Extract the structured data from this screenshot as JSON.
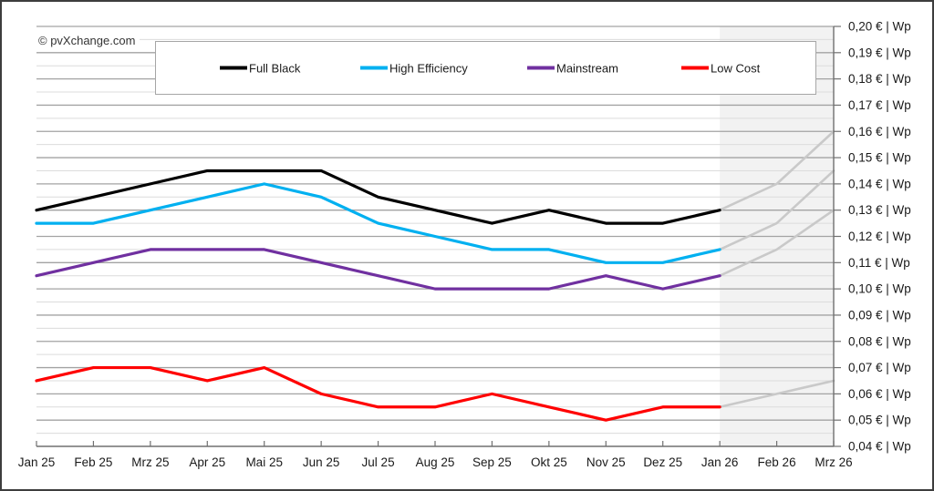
{
  "copyright": "© pvXchange.com",
  "legend": {
    "items": [
      {
        "label": "Full Black",
        "color": "#000000"
      },
      {
        "label": "High Efficiency",
        "color": "#00b0f0"
      },
      {
        "label": "Mainstream",
        "color": "#7030a0"
      },
      {
        "label": "Low Cost",
        "color": "#ff0000"
      }
    ]
  },
  "chart_data": {
    "type": "line",
    "title": "",
    "unit": "€ | Wp",
    "categories": [
      "Jan 25",
      "Feb 25",
      "Mrz 25",
      "Apr 25",
      "Mai 25",
      "Jun 25",
      "Jul 25",
      "Aug 25",
      "Sep 25",
      "Okt 25",
      "Nov 25",
      "Dez 25",
      "Jan 26",
      "Feb 26",
      "Mrz 26"
    ],
    "series": [
      {
        "name": "Full Black",
        "color": "#000000",
        "values": [
          0.13,
          0.135,
          0.14,
          0.145,
          0.145,
          0.145,
          0.135,
          0.13,
          0.125,
          0.13,
          0.125,
          0.125,
          0.13
        ]
      },
      {
        "name": "High Efficiency",
        "color": "#00b0f0",
        "values": [
          0.125,
          0.125,
          0.13,
          0.135,
          0.14,
          0.135,
          0.125,
          0.12,
          0.115,
          0.115,
          0.11,
          0.11,
          0.115
        ]
      },
      {
        "name": "Mainstream",
        "color": "#7030a0",
        "values": [
          0.105,
          0.11,
          0.115,
          0.115,
          0.115,
          0.11,
          0.105,
          0.1,
          0.1,
          0.1,
          0.105,
          0.1,
          0.105
        ]
      },
      {
        "name": "Low Cost",
        "color": "#ff0000",
        "values": [
          0.065,
          0.07,
          0.07,
          0.065,
          0.07,
          0.06,
          0.055,
          0.055,
          0.06,
          0.055,
          0.05,
          0.055,
          0.055
        ]
      }
    ],
    "forecast": {
      "start_index": 12,
      "line_color": "#c9c9c9",
      "region_fill": "#f2f2f2",
      "series": [
        {
          "name": "Full Black",
          "values": [
            0.13,
            0.14,
            0.16
          ]
        },
        {
          "name": "High Efficiency",
          "values": [
            0.115,
            0.125,
            0.145
          ]
        },
        {
          "name": "Mainstream",
          "values": [
            0.105,
            0.115,
            0.13
          ]
        },
        {
          "name": "Low Cost",
          "values": [
            0.055,
            0.06,
            0.065
          ]
        }
      ]
    },
    "y_axis": {
      "min": 0.04,
      "max": 0.2,
      "major_step": 0.01,
      "minor_step": 0.005,
      "tick_labels_top_to_bottom": [
        "0,20 € | Wp",
        "0,19 € | Wp",
        "0,18 € | Wp",
        "0,17 € | Wp",
        "0,16 € | Wp",
        "0,15 € | Wp",
        "0,14 € | Wp",
        "0,13 € | Wp",
        "0,12 € | Wp",
        "0,11 € | Wp",
        "0,10 € | Wp",
        "0,09 € | Wp",
        "0,08 € | Wp",
        "0,07 € | Wp",
        "0,06 € | Wp",
        "0,05 € | Wp",
        "0,04 € | Wp"
      ]
    },
    "grid": {
      "major_color": "#a3a3a3",
      "minor_color": "#dcdcdc",
      "axis_color": "#707070",
      "label_color": "#1a1a1a"
    },
    "legend_position": "top"
  }
}
